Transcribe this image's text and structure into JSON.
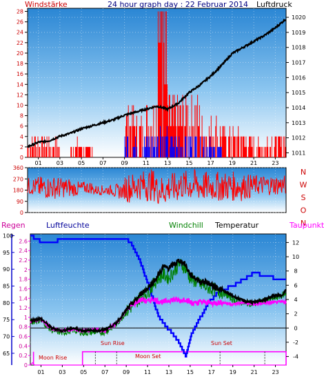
{
  "header": {
    "left_label": "Windstärke",
    "center_label": "24 hour graph day : 22 Februar 2014",
    "right_label": "Luftdruck"
  },
  "compass": {
    "letters": [
      "N",
      "W",
      "S",
      "O",
      "N"
    ]
  },
  "bottom_header": {
    "regen": "Regen",
    "luftfeuchte": "Luftfeuchte",
    "windchill": "Windchill",
    "temperatur": "Temperatur",
    "taupunkt": "Taupunkt"
  },
  "annotations": {
    "moon_rise": "Moon Rise",
    "sun_rise": "Sun Rise",
    "moon_set": "Moon Set",
    "sun_set": "Sun Set"
  },
  "colors": {
    "wind_speed": "#ff0000",
    "gust": "#0000ff",
    "pressure": "#000000",
    "direction": "#ff0000",
    "humidity": "#0000ff",
    "windchill": "#008000",
    "temperature": "#000000",
    "dewpoint": "#ff00ff",
    "rain": "#ff00ff",
    "regen_label": "#cc0099",
    "luftfeuchte_label": "#000099",
    "windchill_label": "#008000",
    "taupunkt_label": "#ff00ff",
    "top_header_text": "#000080",
    "left_axis_text": "#cc0000",
    "compass_text": "#cc0000"
  },
  "chart_data": [
    {
      "type": "line",
      "name": "wind-pressure",
      "x_tick_labels": [
        "01",
        "03",
        "05",
        "07",
        "09",
        "11",
        "13",
        "15",
        "17",
        "19",
        "21",
        "23"
      ],
      "x_tick_hours": [
        1,
        3,
        5,
        7,
        9,
        11,
        13,
        15,
        17,
        19,
        21,
        23
      ],
      "xlim": [
        0,
        24
      ],
      "y_left_ticks": [
        0,
        2,
        4,
        6,
        8,
        10,
        12,
        14,
        16,
        18,
        20,
        22,
        24,
        26,
        28
      ],
      "y_left_range": [
        0,
        28.6
      ],
      "y_right_ticks": [
        1011,
        1012,
        1013,
        1014,
        1015,
        1016,
        1017,
        1018,
        1019,
        1020
      ],
      "y_right_range": [
        1010.7,
        1020.6
      ],
      "series": [
        {
          "id": "pressure",
          "axis": "right",
          "x": [
            0,
            1,
            2,
            3,
            4,
            5,
            6,
            7,
            8,
            9,
            10,
            11,
            12,
            13,
            14,
            15,
            16,
            17,
            18,
            19,
            20,
            21,
            22,
            23,
            24
          ],
          "y": [
            1011.4,
            1011.7,
            1011.8,
            1012.1,
            1012.3,
            1012.6,
            1012.8,
            1013.0,
            1013.2,
            1013.5,
            1013.7,
            1013.9,
            1014.1,
            1013.9,
            1014.3,
            1015.0,
            1015.5,
            1016.1,
            1016.8,
            1017.6,
            1018.0,
            1018.4,
            1018.8,
            1019.3,
            1019.9
          ]
        },
        {
          "id": "wind",
          "axis": "left",
          "hourly_max": [
            4,
            4,
            3,
            0,
            3,
            2,
            0,
            0,
            0,
            10,
            8,
            12,
            28,
            12,
            12,
            12,
            8,
            8,
            6,
            6,
            4,
            3,
            4,
            4
          ],
          "segments": [
            [
              0,
              3
            ],
            [
              3.5,
              6.5
            ],
            [
              8.9,
              24
            ]
          ]
        },
        {
          "id": "gust",
          "axis": "left",
          "hourly_max": [
            0,
            0,
            0,
            0,
            0,
            0,
            0,
            0,
            0,
            4,
            4,
            4,
            6,
            4,
            4,
            4,
            4,
            2,
            0,
            0,
            0,
            0,
            0,
            0
          ],
          "segments": [
            [
              8.9,
              18
            ]
          ]
        }
      ]
    },
    {
      "type": "scatter",
      "name": "wind-direction",
      "y_ticks": [
        0,
        90,
        180,
        270,
        360
      ],
      "ylim": [
        0,
        360
      ],
      "xlim": [
        0,
        24
      ],
      "hourly_center": [
        210,
        200,
        200,
        200,
        190,
        200,
        180,
        180,
        170,
        200,
        220,
        220,
        180,
        200,
        220,
        220,
        210,
        210,
        210,
        210,
        210,
        220,
        220,
        220
      ],
      "hourly_spread": [
        70,
        90,
        90,
        80,
        60,
        50,
        40,
        40,
        60,
        120,
        120,
        130,
        120,
        120,
        120,
        130,
        120,
        120,
        120,
        120,
        100,
        80,
        80,
        80
      ]
    },
    {
      "type": "line",
      "name": "temperature-humidity-rain",
      "x_tick_labels": [
        "01",
        "03",
        "05",
        "07",
        "09",
        "11",
        "13",
        "15",
        "17",
        "19",
        "21",
        "23"
      ],
      "x_tick_hours": [
        1,
        3,
        5,
        7,
        9,
        11,
        13,
        15,
        17,
        19,
        21,
        23
      ],
      "xlim": [
        0,
        24
      ],
      "rain_ticks": [
        "0",
        "0.2",
        "0.4",
        "0.6",
        "0.8",
        "1",
        "1.2",
        "1.4",
        "1.6",
        "1.8",
        "2",
        "2.2",
        "2.4",
        "2.6"
      ],
      "rain_tick_values": [
        0,
        0.2,
        0.4,
        0.6,
        0.8,
        1,
        1.2,
        1.4,
        1.6,
        1.8,
        2,
        2.2,
        2.4,
        2.6
      ],
      "rain_range": [
        0,
        2.75
      ],
      "humidity_ticks": [
        65,
        70,
        75,
        80,
        85,
        90,
        95,
        100
      ],
      "humidity_range": [
        61.5,
        100.5
      ],
      "temp_ticks": [
        -4,
        -2,
        0,
        2,
        4,
        6,
        8,
        10,
        12
      ],
      "temp_range": [
        -5.2,
        13.2
      ],
      "series": [
        {
          "id": "humidity",
          "x": [
            0,
            0.6,
            1,
            2,
            3,
            4,
            5,
            6,
            7,
            8,
            9,
            9.6,
            10.2,
            11,
            11.6,
            12,
            12.5,
            13,
            13.5,
            14,
            14.3,
            14.6,
            15,
            15.5,
            16,
            16.5,
            17,
            17.5,
            18,
            19,
            19.5,
            20,
            20.5,
            21,
            22,
            22.5,
            23,
            24
          ],
          "y": [
            100,
            99,
            98,
            98,
            99,
            99,
            99,
            99,
            99,
            99,
            99,
            97,
            93,
            86,
            80,
            76,
            74,
            72,
            70,
            68,
            66,
            64,
            70,
            73,
            76,
            79,
            81,
            83,
            84,
            85,
            86,
            87,
            88,
            89,
            88,
            88,
            87,
            87
          ]
        },
        {
          "id": "temperature",
          "x": [
            0,
            0.5,
            1,
            2,
            3,
            4,
            5,
            6,
            6.5,
            7,
            8,
            8.5,
            9,
            9.5,
            10,
            10.5,
            11,
            11.5,
            12,
            12.5,
            13,
            13.5,
            14,
            14.5,
            15,
            15.5,
            16,
            16.5,
            17,
            17.5,
            18,
            19,
            20,
            21,
            22,
            23,
            23.5,
            24
          ],
          "y": [
            1.0,
            1.2,
            1.3,
            0.0,
            -0.4,
            0.0,
            -0.4,
            -0.3,
            -0.4,
            -0.2,
            0.6,
            1.5,
            2.5,
            3.3,
            4.1,
            5.0,
            5.6,
            6.4,
            7.4,
            8.6,
            8.4,
            9.0,
            9.5,
            9.0,
            7.5,
            7.0,
            6.5,
            6.5,
            6.0,
            5.7,
            5.3,
            4.5,
            3.8,
            3.6,
            4.0,
            4.6,
            4.5,
            5.3
          ]
        },
        {
          "id": "windchill",
          "x": [
            0,
            0.5,
            1,
            2,
            3,
            4,
            5,
            6,
            7,
            8,
            9,
            10,
            10.5,
            11,
            11.5,
            12,
            12.5,
            13,
            13.5,
            14,
            14.5,
            15,
            15.5,
            16,
            17,
            18,
            19,
            20,
            21,
            22,
            23,
            24
          ],
          "y": [
            0.8,
            1.0,
            1.1,
            -0.3,
            -0.7,
            -0.3,
            -0.7,
            -0.6,
            -0.6,
            0.4,
            2.2,
            3.8,
            4.5,
            5.0,
            6.0,
            7.0,
            7.5,
            7.0,
            8.0,
            9.0,
            8.5,
            7.0,
            6.5,
            6.0,
            5.5,
            5.0,
            4.0,
            3.5,
            3.4,
            3.8,
            4.2,
            4.8
          ]
        },
        {
          "id": "dewpoint",
          "x": [
            0,
            0.5,
            1,
            2,
            3,
            4,
            5,
            6,
            7,
            8,
            8.5,
            9,
            9.5,
            10,
            10.5,
            11,
            11.5,
            12,
            12.5,
            13,
            13.5,
            14,
            14.5,
            15,
            15.5,
            16,
            17,
            18,
            19,
            20,
            21,
            22,
            23,
            24
          ],
          "y": [
            0.9,
            1.1,
            1.2,
            -0.1,
            -0.4,
            -0.2,
            -0.4,
            -0.3,
            -0.4,
            0.5,
            1.4,
            2.5,
            3.1,
            3.7,
            4.0,
            3.7,
            4.1,
            3.8,
            3.6,
            3.9,
            4.0,
            3.8,
            4.1,
            3.6,
            3.4,
            3.7,
            3.5,
            3.6,
            3.3,
            3.6,
            3.3,
            3.5,
            3.6,
            3.7
          ]
        },
        {
          "id": "rain",
          "x": [
            0,
            0.2,
            0.4,
            5,
            12,
            24
          ],
          "y": [
            0,
            0.05,
            0,
            0,
            0,
            0
          ]
        }
      ],
      "moon_sun_trace": {
        "hours": [
          0.3,
          4.9,
          24
        ],
        "low_value": 0,
        "high_value": 0.28
      }
    }
  ]
}
